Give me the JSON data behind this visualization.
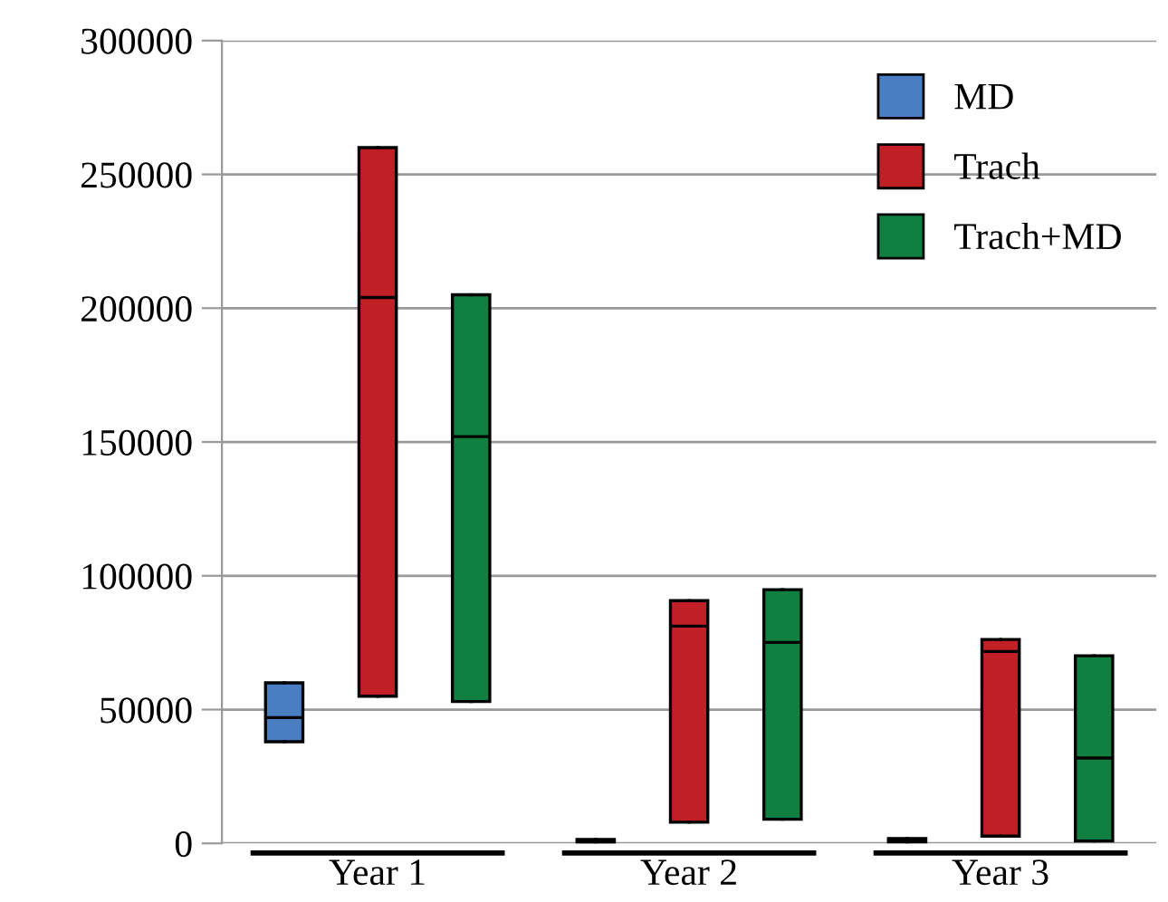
{
  "chart_data": {
    "type": "box",
    "categories": [
      "Year 1",
      "Year 2",
      "Year 3"
    ],
    "series": [
      {
        "name": "MD",
        "color": "#4a7ec3",
        "boxes": [
          {
            "low": 38000,
            "q1": 38000,
            "median": 47000,
            "q3": 60000,
            "high": 60000
          },
          {
            "low": 0,
            "q1": 0,
            "median": 500,
            "q3": 1500,
            "high": 1500
          },
          {
            "low": 0,
            "q1": 0,
            "median": 1000,
            "q3": 1800,
            "high": 1800
          }
        ]
      },
      {
        "name": "Trach",
        "color": "#c01f26",
        "boxes": [
          {
            "low": 55000,
            "q1": 55000,
            "median": 204000,
            "q3": 260000,
            "high": 260000
          },
          {
            "low": 7900,
            "q1": 7900,
            "median": 81200,
            "q3": 90700,
            "high": 90700
          },
          {
            "low": 2700,
            "q1": 2700,
            "median": 71700,
            "q3": 76200,
            "high": 76200
          }
        ]
      },
      {
        "name": "Trach+MD",
        "color": "#108040",
        "boxes": [
          {
            "low": 53000,
            "q1": 53000,
            "median": 152000,
            "q3": 205000,
            "high": 205000
          },
          {
            "low": 9000,
            "q1": 9000,
            "median": 75100,
            "q3": 94800,
            "high": 94800
          },
          {
            "low": 900,
            "q1": 900,
            "median": 31900,
            "q3": 70100,
            "high": 70100
          }
        ]
      }
    ],
    "ylim": [
      0,
      300000
    ],
    "yticks": [
      0,
      50000,
      100000,
      150000,
      200000,
      250000,
      300000
    ],
    "grid": "y",
    "legend": "top right"
  }
}
